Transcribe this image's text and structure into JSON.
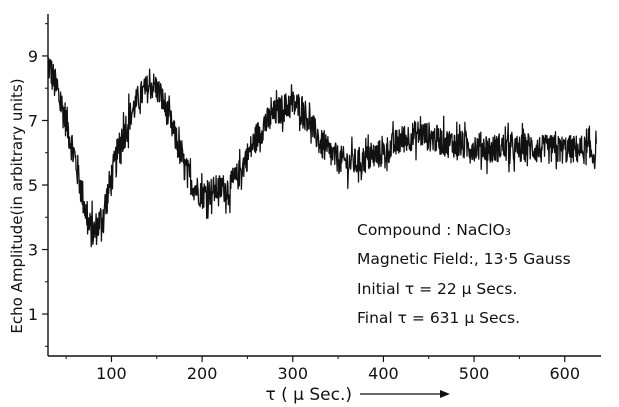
{
  "chart_data": {
    "type": "line",
    "xlabel": "τ ( μ  Sec.)",
    "ylabel": "Echo Amplitude(in arbitrary units)",
    "xlim": [
      30,
      640
    ],
    "ylim": [
      -0.3,
      10.3
    ],
    "x_ticks": [
      100,
      200,
      300,
      400,
      500,
      600
    ],
    "x_tick_labels": [
      "100",
      "200",
      "300",
      "400",
      "500",
      "600"
    ],
    "y_ticks": [
      1,
      3,
      5,
      7,
      9
    ],
    "y_tick_labels": [
      "1",
      "3",
      "5",
      "7",
      "9"
    ],
    "grid": false,
    "annotations": [
      "Compound : NaClO₃",
      "Magnetic Field:, 13·5 Gauss",
      "Initial  τ = 22 μ  Secs.",
      "Final  τ = 631 μ  Secs."
    ],
    "series": [
      {
        "x": [
          30,
          40,
          50,
          60,
          70,
          75,
          80,
          90,
          100,
          110,
          120,
          130,
          140,
          145,
          150,
          160,
          170,
          180,
          190,
          200,
          210,
          220,
          230,
          240,
          250,
          260,
          270,
          280,
          290,
          300,
          310,
          320,
          330,
          340,
          350,
          360,
          370,
          380,
          390,
          400,
          410,
          420,
          430,
          440,
          450,
          460,
          470,
          480,
          490,
          500,
          510,
          520,
          530,
          540,
          550,
          560,
          570,
          580,
          590,
          600,
          610,
          620,
          630,
          635
        ],
        "y": [
          8.8,
          7.9,
          7.0,
          5.8,
          4.4,
          3.7,
          3.5,
          4.0,
          5.2,
          6.3,
          7.1,
          7.7,
          8.0,
          8.1,
          8.0,
          7.4,
          6.5,
          5.6,
          5.0,
          4.7,
          4.8,
          4.9,
          4.9,
          5.3,
          5.9,
          6.5,
          6.9,
          7.2,
          7.4,
          7.5,
          7.4,
          6.9,
          6.3,
          6.0,
          5.8,
          5.7,
          5.7,
          5.8,
          5.9,
          6.0,
          6.2,
          6.4,
          6.5,
          6.6,
          6.5,
          6.4,
          6.3,
          6.3,
          6.2,
          6.2,
          6.2,
          6.1,
          6.2,
          6.1,
          6.1,
          6.2,
          6.1,
          6.1,
          6.1,
          6.1,
          6.1,
          6.1,
          6.0,
          5.9
        ]
      }
    ]
  }
}
